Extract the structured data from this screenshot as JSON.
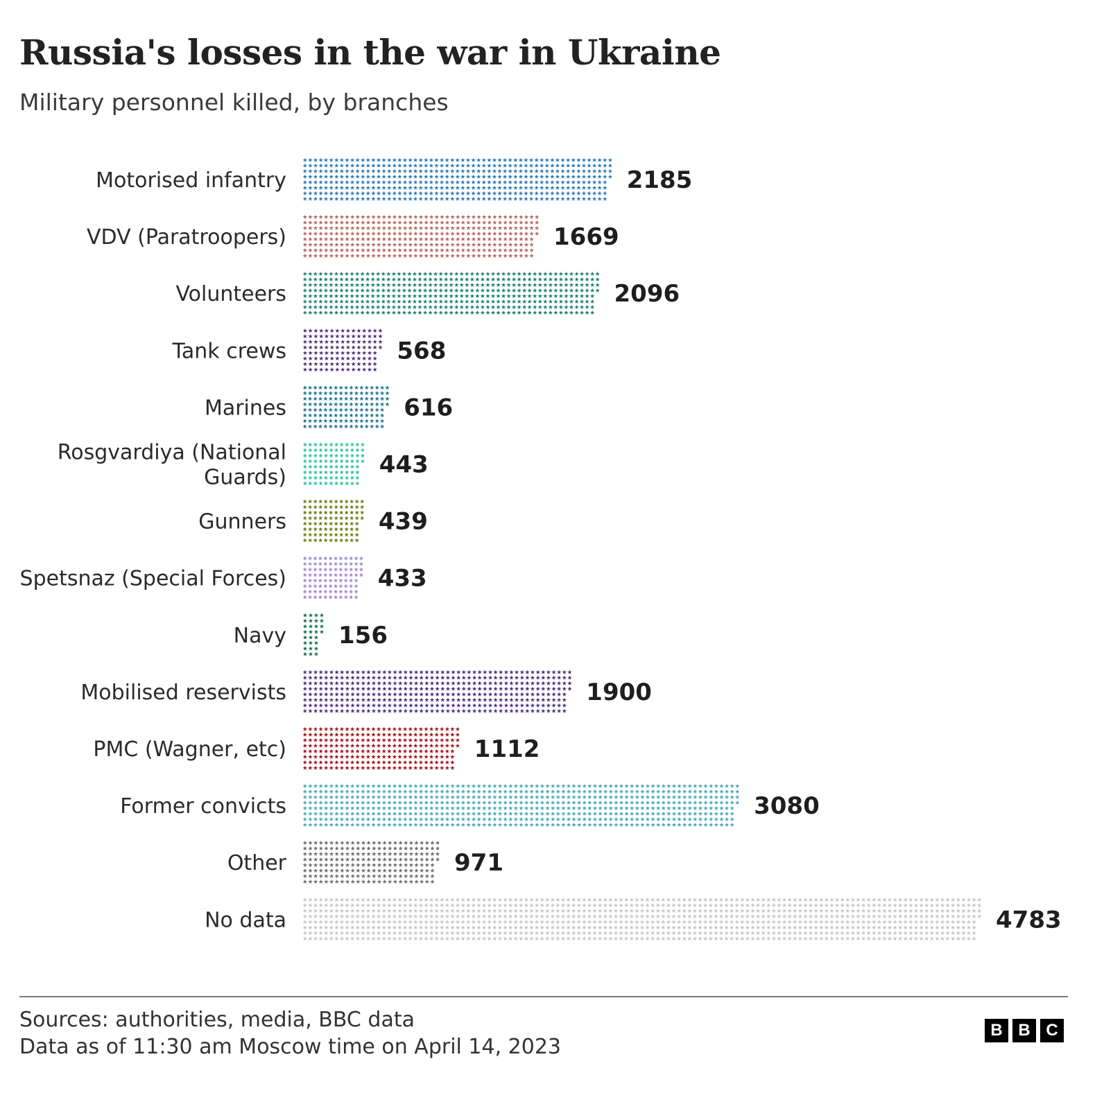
{
  "title": "Russia's losses in the war in Ukraine",
  "subtitle": "Military personnel killed, by branches",
  "chart_data": {
    "type": "bar",
    "orientation": "horizontal",
    "style": "star-pictogram",
    "title": "Russia's losses in the war in Ukraine",
    "subtitle": "Military personnel killed, by branches",
    "xlabel": "",
    "ylabel": "",
    "grid": false,
    "legend": "none",
    "categories": [
      "Motorised infantry",
      "VDV (Paratroopers)",
      "Volunteers",
      "Tank crews",
      "Marines",
      "Rosgvardiya (National Guards)",
      "Gunners",
      "Spetsnaz (Special Forces)",
      "Navy",
      "Mobilised reservists",
      "PMC (Wagner, etc)",
      "Former convicts",
      "Other",
      "No data"
    ],
    "label_lines": [
      [
        "Motorised infantry"
      ],
      [
        "VDV (Paratroopers)"
      ],
      [
        "Volunteers"
      ],
      [
        "Tank crews"
      ],
      [
        "Marines"
      ],
      [
        "Rosgvardiya (National",
        "Guards)"
      ],
      [
        "Gunners"
      ],
      [
        "Spetsnaz (Special Forces)"
      ],
      [
        "Navy"
      ],
      [
        "Mobilised reservists"
      ],
      [
        "PMC (Wagner, etc)"
      ],
      [
        "Former convicts"
      ],
      [
        "Other"
      ],
      [
        "No data"
      ]
    ],
    "values": [
      2185,
      1669,
      2096,
      568,
      616,
      443,
      439,
      433,
      156,
      1900,
      1112,
      3080,
      971,
      4783
    ],
    "value_labels": [
      "2185",
      "1669",
      "2096",
      "568",
      "616",
      "443",
      "439",
      "433",
      "156",
      "1900",
      "1112",
      "3080",
      "971",
      "4783"
    ],
    "colors": [
      "#2b7ab8",
      "#b86660",
      "#16826a",
      "#4b2e7c",
      "#1f7590",
      "#2cc29a",
      "#6a7d10",
      "#9d87d4",
      "#116a4c",
      "#4b2e7c",
      "#a2141a",
      "#4aa8bc",
      "#6c6c6c",
      "#c6c6c6"
    ],
    "icon": "star-icon"
  },
  "footer": {
    "source": "Sources: authorities, media, BBC data",
    "note": "Data as of 11:30 am Moscow time on April 14, 2023"
  },
  "logo": {
    "letters": [
      "B",
      "B",
      "C"
    ]
  }
}
